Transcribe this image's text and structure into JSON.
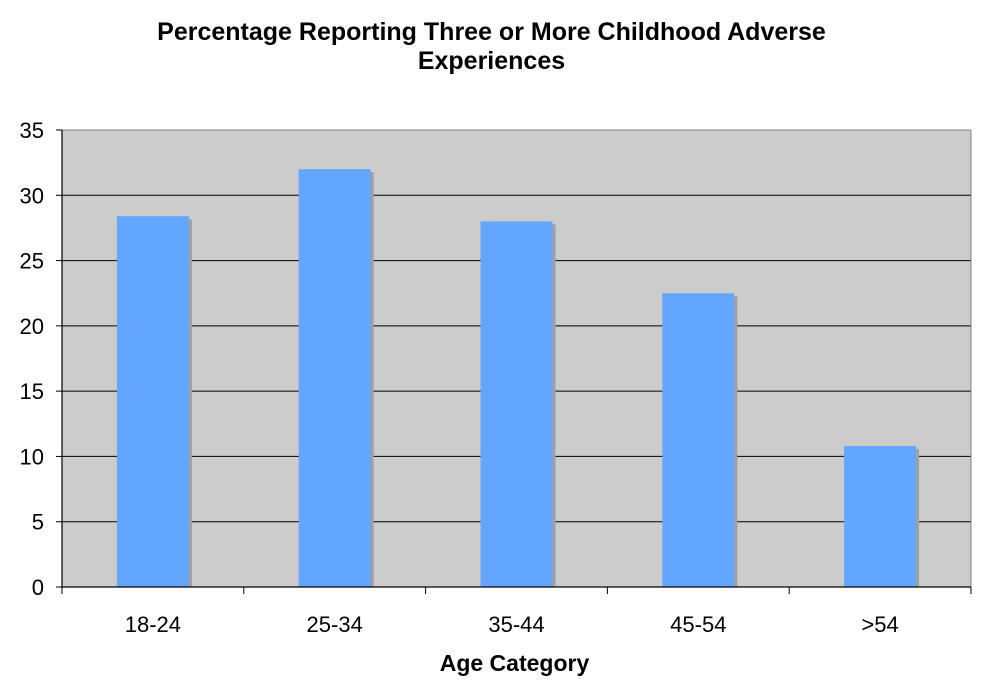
{
  "chart_data": {
    "type": "bar",
    "title_lines": [
      "Percentage Reporting Three or More Childhood Adverse",
      "Experiences"
    ],
    "xlabel": "Age Category",
    "ylabel": "",
    "categories": [
      "18-24",
      "25-34",
      "35-44",
      "45-54",
      ">54"
    ],
    "values": [
      28.4,
      32.0,
      28.0,
      22.5,
      10.8
    ],
    "ylim": [
      0,
      35
    ],
    "yticks": [
      0,
      5,
      10,
      15,
      20,
      25,
      30,
      35
    ],
    "grid": true,
    "legend": "none",
    "colors": {
      "bar": "#63a6ff",
      "bar_shadow": "#a0a0a0",
      "plot_background": "#cccccc",
      "gridline": "#000000"
    }
  }
}
